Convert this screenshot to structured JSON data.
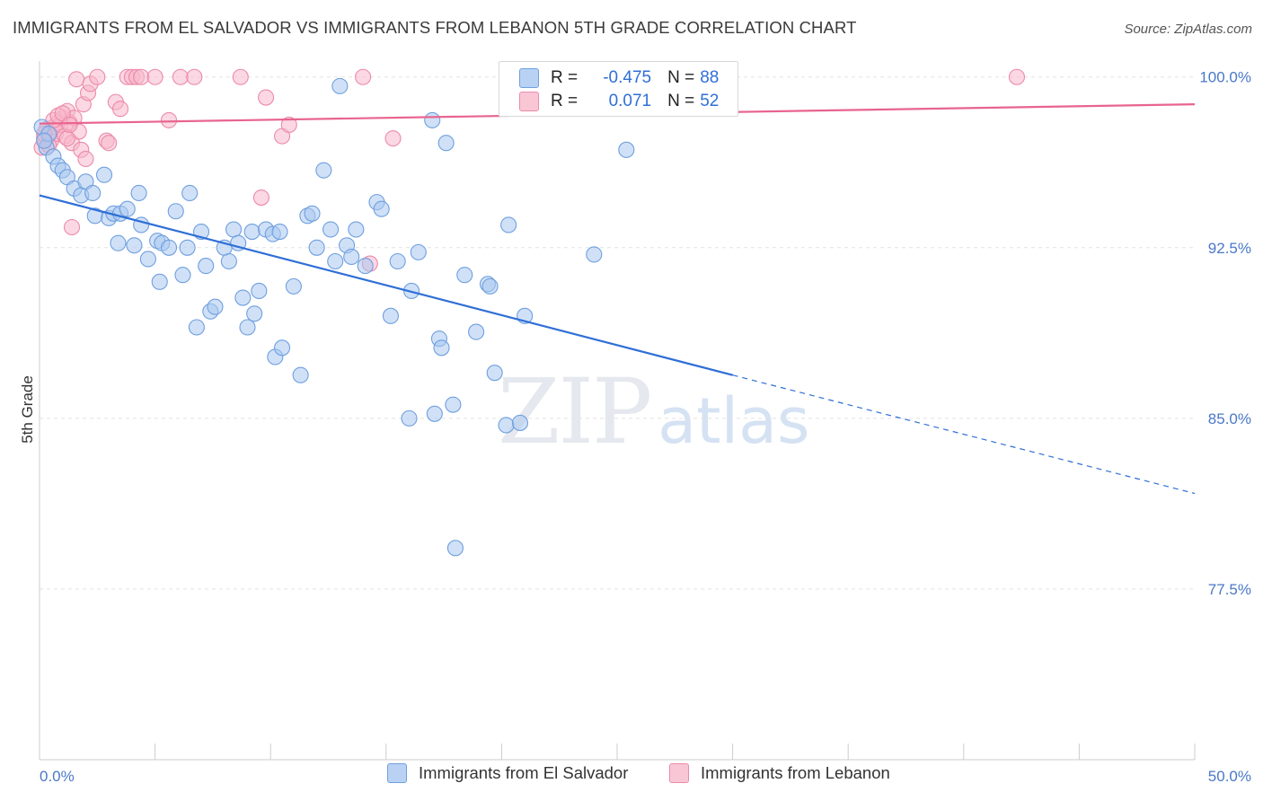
{
  "title": "IMMIGRANTS FROM EL SALVADOR VS IMMIGRANTS FROM LEBANON 5TH GRADE CORRELATION CHART",
  "source": "Source: ZipAtlas.com",
  "watermark": {
    "zip": "ZIP",
    "atlas": "atlas"
  },
  "colors": {
    "blue_fill": "#a9c8f0",
    "blue_stroke": "#6f9fdf",
    "blue_line": "#2f6fd6",
    "pink_fill": "#f7b8cc",
    "pink_stroke": "#ec8aa9",
    "pink_line": "#e8648e",
    "grid": "#e3e3e3",
    "axis": "#cccccc",
    "tick_text": "#4a78c8"
  },
  "legend": {
    "rows": [
      {
        "r_label": "R =",
        "r_value": "-0.475",
        "n_label": "N =",
        "n_value": "88"
      },
      {
        "r_label": "R =",
        "r_value": "0.071",
        "n_label": "N =",
        "n_value": "52"
      }
    ]
  },
  "chart_data": {
    "type": "scatter",
    "title": "IMMIGRANTS FROM EL SALVADOR VS IMMIGRANTS FROM LEBANON 5TH GRADE CORRELATION CHART",
    "xlabel": "",
    "ylabel": "5th Grade",
    "xlim": [
      0,
      50
    ],
    "ylim": [
      70,
      100.7
    ],
    "x_tick_labels": [
      "0.0%",
      "50.0%"
    ],
    "y_ticks": [
      77.5,
      85.0,
      92.5,
      100.0
    ],
    "y_tick_labels": [
      "77.5%",
      "85.0%",
      "92.5%",
      "100.0%"
    ],
    "grid": true,
    "legend_position": "top-center",
    "series": [
      {
        "name": "Immigrants from El Salvador",
        "color": "#a9c8f0",
        "R": -0.475,
        "N": 88,
        "trend": {
          "x0": 0,
          "y0": 94.8,
          "x1": 30,
          "y1": 86.9,
          "dash_x1": 50,
          "dash_y1": 81.7
        },
        "points": [
          [
            0.1,
            97.8
          ],
          [
            0.3,
            96.9
          ],
          [
            0.4,
            97.5
          ],
          [
            0.6,
            96.5
          ],
          [
            0.8,
            96.1
          ],
          [
            1.0,
            95.9
          ],
          [
            1.2,
            95.6
          ],
          [
            1.5,
            95.1
          ],
          [
            1.8,
            94.8
          ],
          [
            2.0,
            95.4
          ],
          [
            2.3,
            94.9
          ],
          [
            2.8,
            95.7
          ],
          [
            2.4,
            93.9
          ],
          [
            3.0,
            93.8
          ],
          [
            3.2,
            94.0
          ],
          [
            3.5,
            94.0
          ],
          [
            3.8,
            94.2
          ],
          [
            4.3,
            94.9
          ],
          [
            4.4,
            93.5
          ],
          [
            3.4,
            92.7
          ],
          [
            4.1,
            92.6
          ],
          [
            4.7,
            92.0
          ],
          [
            5.1,
            92.8
          ],
          [
            5.3,
            92.7
          ],
          [
            5.6,
            92.5
          ],
          [
            5.2,
            91.0
          ],
          [
            5.9,
            94.1
          ],
          [
            6.2,
            91.3
          ],
          [
            6.4,
            92.5
          ],
          [
            6.5,
            94.9
          ],
          [
            7.0,
            93.2
          ],
          [
            7.2,
            91.7
          ],
          [
            6.8,
            89.0
          ],
          [
            7.4,
            89.7
          ],
          [
            7.6,
            89.9
          ],
          [
            8.0,
            92.5
          ],
          [
            8.2,
            91.9
          ],
          [
            8.4,
            93.3
          ],
          [
            8.6,
            92.7
          ],
          [
            8.8,
            90.3
          ],
          [
            9.0,
            89.0
          ],
          [
            9.3,
            89.6
          ],
          [
            9.5,
            90.6
          ],
          [
            9.2,
            93.2
          ],
          [
            9.8,
            93.3
          ],
          [
            10.1,
            93.1
          ],
          [
            10.4,
            93.2
          ],
          [
            10.2,
            87.7
          ],
          [
            10.5,
            88.1
          ],
          [
            11.0,
            90.8
          ],
          [
            11.3,
            86.9
          ],
          [
            11.6,
            93.9
          ],
          [
            11.8,
            94.0
          ],
          [
            12.0,
            92.5
          ],
          [
            12.3,
            95.9
          ],
          [
            12.6,
            93.3
          ],
          [
            12.8,
            91.9
          ],
          [
            13.0,
            99.6
          ],
          [
            13.3,
            92.6
          ],
          [
            13.5,
            92.1
          ],
          [
            13.7,
            93.3
          ],
          [
            14.1,
            91.7
          ],
          [
            14.6,
            94.5
          ],
          [
            14.8,
            94.2
          ],
          [
            15.2,
            89.5
          ],
          [
            15.5,
            91.9
          ],
          [
            16.0,
            85.0
          ],
          [
            16.1,
            90.6
          ],
          [
            16.4,
            92.3
          ],
          [
            17.0,
            98.1
          ],
          [
            17.1,
            85.2
          ],
          [
            17.3,
            88.5
          ],
          [
            17.4,
            88.1
          ],
          [
            17.6,
            97.1
          ],
          [
            17.9,
            85.6
          ],
          [
            18.4,
            91.3
          ],
          [
            18.0,
            79.3
          ],
          [
            18.9,
            88.8
          ],
          [
            19.4,
            90.9
          ],
          [
            19.5,
            90.8
          ],
          [
            19.7,
            87.0
          ],
          [
            20.3,
            93.5
          ],
          [
            20.2,
            84.7
          ],
          [
            20.8,
            84.8
          ],
          [
            21.0,
            89.5
          ],
          [
            24.0,
            92.2
          ],
          [
            25.4,
            96.8
          ],
          [
            0.2,
            97.2
          ]
        ]
      },
      {
        "name": "Immigrants from Lebanon",
        "color": "#f7b8cc",
        "R": 0.071,
        "N": 52,
        "trend": {
          "x0": 0,
          "y0": 97.95,
          "x1": 50,
          "y1": 98.8
        },
        "points": [
          [
            0.1,
            96.9
          ],
          [
            0.2,
            97.3
          ],
          [
            0.3,
            97.7
          ],
          [
            0.4,
            97.4
          ],
          [
            0.5,
            97.2
          ],
          [
            0.6,
            97.8
          ],
          [
            0.7,
            97.5
          ],
          [
            0.8,
            98.0
          ],
          [
            0.9,
            97.9
          ],
          [
            1.0,
            98.2
          ],
          [
            1.1,
            97.4
          ],
          [
            1.2,
            98.5
          ],
          [
            1.3,
            98.0
          ],
          [
            1.4,
            97.1
          ],
          [
            1.5,
            98.2
          ],
          [
            1.6,
            99.9
          ],
          [
            1.7,
            97.6
          ],
          [
            1.8,
            96.8
          ],
          [
            1.9,
            98.8
          ],
          [
            2.0,
            96.4
          ],
          [
            2.1,
            99.3
          ],
          [
            2.2,
            99.7
          ],
          [
            2.5,
            100.0
          ],
          [
            2.9,
            97.2
          ],
          [
            3.0,
            97.1
          ],
          [
            3.3,
            98.9
          ],
          [
            3.5,
            98.6
          ],
          [
            3.8,
            100.0
          ],
          [
            4.0,
            100.0
          ],
          [
            4.2,
            100.0
          ],
          [
            4.4,
            100.0
          ],
          [
            5.0,
            100.0
          ],
          [
            5.6,
            98.1
          ],
          [
            6.1,
            100.0
          ],
          [
            6.7,
            100.0
          ],
          [
            8.7,
            100.0
          ],
          [
            9.6,
            94.7
          ],
          [
            9.8,
            99.1
          ],
          [
            10.5,
            97.4
          ],
          [
            10.8,
            97.9
          ],
          [
            14.3,
            91.8
          ],
          [
            14.0,
            100.0
          ],
          [
            15.3,
            97.3
          ],
          [
            42.3,
            100.0
          ],
          [
            1.4,
            93.4
          ],
          [
            1.2,
            97.3
          ],
          [
            0.4,
            97.0
          ],
          [
            0.6,
            98.1
          ],
          [
            0.8,
            98.3
          ],
          [
            1.0,
            98.4
          ],
          [
            1.3,
            97.9
          ],
          [
            0.2,
            97.5
          ]
        ]
      }
    ]
  }
}
